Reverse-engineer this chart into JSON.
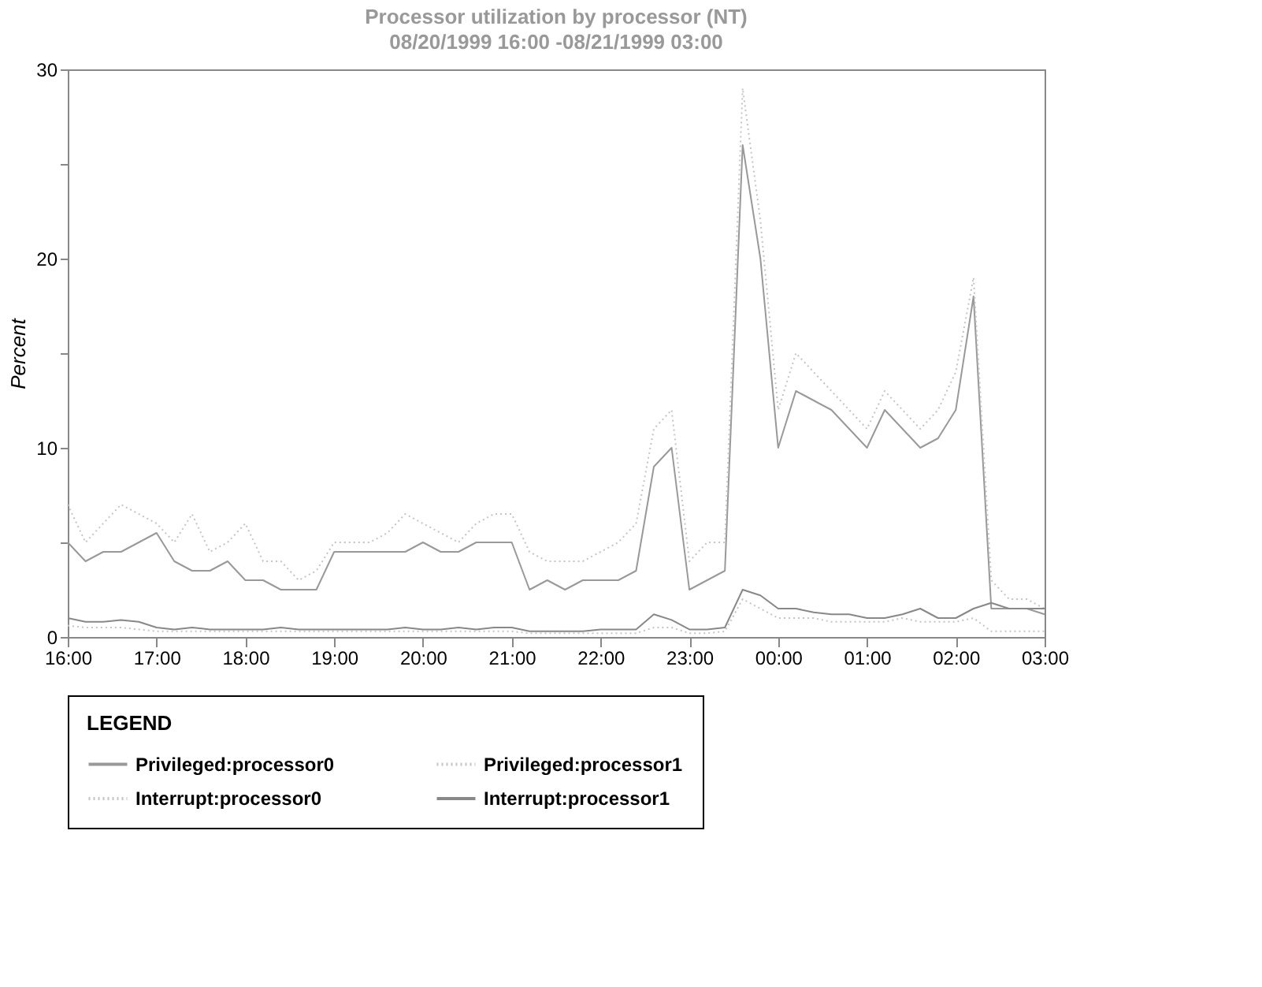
{
  "chart_data": {
    "type": "line",
    "title": "Processor utilization by processor (NT)",
    "subtitle": "08/20/1999 16:00 -08/21/1999 03:00",
    "ylabel": "Percent",
    "legend_title": "LEGEND",
    "legend": "bottom",
    "x": [
      "1999-08-20T16:00",
      "1999-08-20T16:12",
      "1999-08-20T16:24",
      "1999-08-20T16:36",
      "1999-08-20T16:48",
      "1999-08-20T17:00",
      "1999-08-20T17:12",
      "1999-08-20T17:24",
      "1999-08-20T17:36",
      "1999-08-20T17:48",
      "1999-08-20T18:00",
      "1999-08-20T18:12",
      "1999-08-20T18:24",
      "1999-08-20T18:36",
      "1999-08-20T18:48",
      "1999-08-20T19:00",
      "1999-08-20T19:12",
      "1999-08-20T19:24",
      "1999-08-20T19:36",
      "1999-08-20T19:48",
      "1999-08-20T20:00",
      "1999-08-20T20:12",
      "1999-08-20T20:24",
      "1999-08-20T20:36",
      "1999-08-20T20:48",
      "1999-08-20T21:00",
      "1999-08-20T21:12",
      "1999-08-20T21:24",
      "1999-08-20T21:36",
      "1999-08-20T21:48",
      "1999-08-20T22:00",
      "1999-08-20T22:12",
      "1999-08-20T22:24",
      "1999-08-20T22:36",
      "1999-08-20T22:48",
      "1999-08-20T23:00",
      "1999-08-20T23:12",
      "1999-08-20T23:24",
      "1999-08-20T23:36",
      "1999-08-20T23:48",
      "1999-08-21T00:00",
      "1999-08-21T00:12",
      "1999-08-21T00:24",
      "1999-08-21T00:36",
      "1999-08-21T00:48",
      "1999-08-21T01:00",
      "1999-08-21T01:12",
      "1999-08-21T01:24",
      "1999-08-21T01:36",
      "1999-08-21T01:48",
      "1999-08-21T02:00",
      "1999-08-21T02:12",
      "1999-08-21T02:24",
      "1999-08-21T02:36",
      "1999-08-21T02:48",
      "1999-08-21T03:00"
    ],
    "series": [
      {
        "name": "Privileged:processor0",
        "color": "#999999",
        "line_style": "solid",
        "values": [
          5,
          4,
          4.5,
          4.5,
          5,
          5.5,
          4,
          3.5,
          3.5,
          4,
          3,
          3,
          2.5,
          2.5,
          2.5,
          4.5,
          4.5,
          4.5,
          4.5,
          4.5,
          5,
          4.5,
          4.5,
          5,
          5,
          5,
          2.5,
          3,
          2.5,
          3,
          3,
          3,
          3.5,
          9,
          10,
          2.5,
          3,
          3.5,
          26,
          20,
          10,
          13,
          12.5,
          12,
          11,
          10,
          12,
          11,
          10,
          10.5,
          12,
          18,
          1.5,
          1.5,
          1.5,
          1.2
        ]
      },
      {
        "name": "Privileged:processor1",
        "color": "#c4c4c4",
        "line_style": "dotted",
        "values": [
          7,
          5,
          6,
          7,
          6.5,
          6,
          5,
          6.5,
          4.5,
          5,
          6,
          4,
          4,
          3,
          3.5,
          5,
          5,
          5,
          5.5,
          6.5,
          6,
          5.5,
          5,
          6,
          6.5,
          6.5,
          4.5,
          4,
          4,
          4,
          4.5,
          5,
          6,
          11,
          12,
          4,
          5,
          5,
          29,
          22,
          12,
          15,
          14,
          13,
          12,
          11,
          13,
          12,
          11,
          12,
          14,
          19,
          3,
          2,
          2,
          1.5
        ]
      },
      {
        "name": "Interrupt:processor0",
        "color": "#c4c4c4",
        "line_style": "dotted",
        "values": [
          0.6,
          0.5,
          0.5,
          0.5,
          0.4,
          0.3,
          0.3,
          0.3,
          0.3,
          0.3,
          0.3,
          0.3,
          0.3,
          0.3,
          0.3,
          0.3,
          0.3,
          0.3,
          0.3,
          0.3,
          0.3,
          0.3,
          0.3,
          0.3,
          0.3,
          0.3,
          0.2,
          0.2,
          0.2,
          0.2,
          0.2,
          0.2,
          0.2,
          0.5,
          0.5,
          0.2,
          0.2,
          0.3,
          2,
          1.5,
          1,
          1,
          1,
          0.8,
          0.8,
          0.8,
          0.8,
          1,
          0.8,
          0.8,
          0.8,
          1,
          0.3,
          0.3,
          0.3,
          0.3
        ]
      },
      {
        "name": "Interrupt:processor1",
        "color": "#888888",
        "line_style": "solid",
        "values": [
          1,
          0.8,
          0.8,
          0.9,
          0.8,
          0.5,
          0.4,
          0.5,
          0.4,
          0.4,
          0.4,
          0.4,
          0.5,
          0.4,
          0.4,
          0.4,
          0.4,
          0.4,
          0.4,
          0.5,
          0.4,
          0.4,
          0.5,
          0.4,
          0.5,
          0.5,
          0.3,
          0.3,
          0.3,
          0.3,
          0.4,
          0.4,
          0.4,
          1.2,
          0.9,
          0.4,
          0.4,
          0.5,
          2.5,
          2.2,
          1.5,
          1.5,
          1.3,
          1.2,
          1.2,
          1,
          1,
          1.2,
          1.5,
          1,
          1,
          1.5,
          1.8,
          1.5,
          1.5,
          1.5
        ]
      }
    ],
    "xlim": [
      "1999-08-20T16:00",
      "1999-08-21T03:00"
    ],
    "xticks": [
      {
        "value": "1999-08-20T16:00",
        "label": "16:00"
      },
      {
        "value": "1999-08-20T17:00",
        "label": "17:00"
      },
      {
        "value": "1999-08-20T18:00",
        "label": "18:00"
      },
      {
        "value": "1999-08-20T19:00",
        "label": "19:00"
      },
      {
        "value": "1999-08-20T20:00",
        "label": "20:00"
      },
      {
        "value": "1999-08-20T21:00",
        "label": "21:00"
      },
      {
        "value": "1999-08-20T22:00",
        "label": "22:00"
      },
      {
        "value": "1999-08-20T23:00",
        "label": "23:00"
      },
      {
        "value": "1999-08-21T00:00",
        "label": "00:00"
      },
      {
        "value": "1999-08-21T01:00",
        "label": "01:00"
      },
      {
        "value": "1999-08-21T02:00",
        "label": "02:00"
      },
      {
        "value": "1999-08-21T03:00",
        "label": "03:00"
      }
    ],
    "ylim": [
      0,
      30
    ],
    "yticks": [
      0,
      {
        "value": 5,
        "label": null
      },
      10,
      {
        "value": 15,
        "label": null
      },
      20,
      {
        "value": 25,
        "label": null
      },
      30
    ]
  }
}
